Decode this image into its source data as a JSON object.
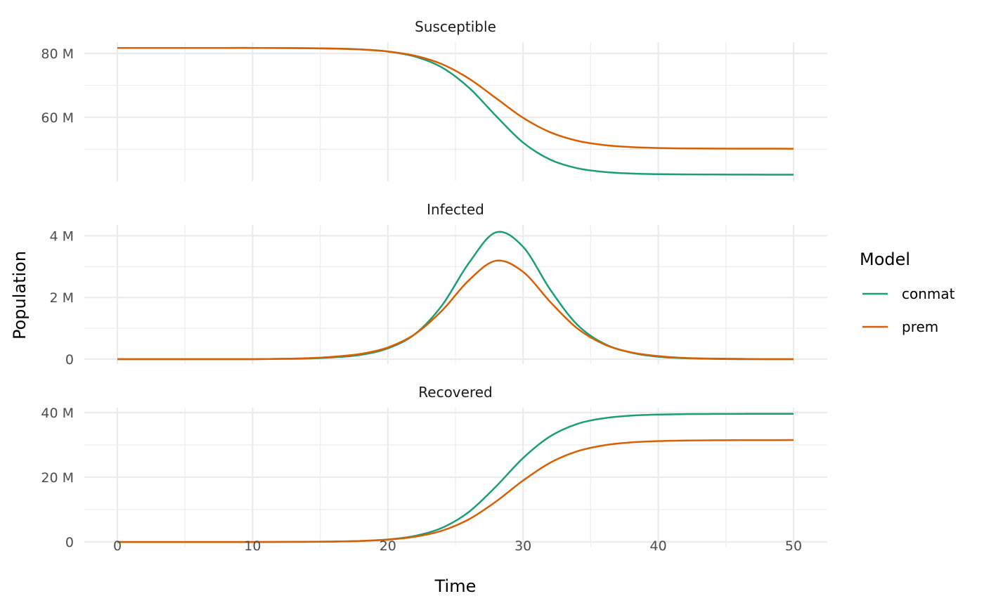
{
  "chart_data": {
    "type": "line",
    "xlabel": "Time",
    "ylabel": "Population",
    "x_ticks": [
      "0",
      "10",
      "20",
      "30",
      "40",
      "50"
    ],
    "xlim": [
      0,
      50
    ],
    "grid": true,
    "legend": {
      "title": "Model",
      "placement": "right",
      "entries": [
        "conmat",
        "prem"
      ]
    },
    "colors": {
      "conmat": "#1B9E77",
      "prem": "#D95F02"
    },
    "x": [
      0,
      2,
      4,
      6,
      8,
      10,
      12,
      14,
      16,
      18,
      20,
      22,
      24,
      26,
      28,
      30,
      32,
      34,
      36,
      38,
      40,
      42,
      44,
      46,
      48,
      50
    ],
    "panels": [
      {
        "title": "Susceptible",
        "unit": "M",
        "y_ticks": [
          {
            "value": 60,
            "label": "60 M"
          },
          {
            "value": 80,
            "label": "80 M"
          }
        ],
        "ylim": [
          40,
          83.5
        ],
        "series": [
          {
            "name": "conmat",
            "values": [
              81.7,
              81.7,
              81.7,
              81.7,
              81.7,
              81.7,
              81.67,
              81.63,
              81.51,
              81.24,
              80.57,
              79.01,
              75.6,
              69.27,
              60.44,
              52.12,
              46.81,
              44.11,
              42.95,
              42.44,
              42.24,
              42.16,
              42.13,
              42.12,
              42.1,
              42.1
            ]
          },
          {
            "name": "prem",
            "values": [
              81.7,
              81.7,
              81.7,
              81.7,
              81.7,
              81.7,
              81.66,
              81.61,
              81.48,
              81.21,
              80.6,
              79.27,
              76.64,
              72.12,
              66.0,
              59.88,
              55.36,
              52.69,
              51.34,
              50.7,
              50.42,
              50.3,
              50.24,
              50.22,
              50.21,
              50.2
            ]
          }
        ]
      },
      {
        "title": "Infected",
        "unit": "M",
        "y_ticks": [
          {
            "value": 0,
            "label": "0"
          },
          {
            "value": 2,
            "label": "2 M"
          },
          {
            "value": 4,
            "label": "4 M"
          }
        ],
        "ylim": [
          -0.16,
          4.35
        ],
        "series": [
          {
            "name": "conmat",
            "values": [
              0,
              0,
              0,
              0,
              0,
              0,
              0.01,
              0.02,
              0.06,
              0.14,
              0.35,
              0.81,
              1.74,
              3.12,
              4.11,
              3.64,
              2.26,
              1.12,
              0.5,
              0.21,
              0.08,
              0.03,
              0.01,
              0,
              0,
              0
            ]
          },
          {
            "name": "prem",
            "values": [
              0,
              0,
              0,
              0,
              0,
              0,
              0.01,
              0.03,
              0.08,
              0.17,
              0.38,
              0.81,
              1.57,
              2.56,
              3.19,
              2.83,
              1.86,
              1.0,
              0.48,
              0.22,
              0.1,
              0.04,
              0.02,
              0.01,
              0,
              0
            ]
          }
        ]
      },
      {
        "title": "Recovered",
        "unit": "M",
        "y_ticks": [
          {
            "value": 0,
            "label": "0"
          },
          {
            "value": 20,
            "label": "20 M"
          },
          {
            "value": 40,
            "label": "40 M"
          }
        ],
        "ylim": [
          -1.5,
          41.5
        ],
        "series": [
          {
            "name": "conmat",
            "values": [
              0,
              0,
              0,
              0,
              0,
              0,
              0.01,
              0.05,
              0.13,
              0.32,
              0.78,
              1.88,
              4.36,
              9.31,
              17.15,
              25.94,
              32.63,
              36.47,
              38.25,
              39.05,
              39.38,
              39.51,
              39.56,
              39.58,
              39.6,
              39.6
            ]
          },
          {
            "name": "prem",
            "values": [
              0,
              0,
              0,
              0,
              0,
              0,
              0.03,
              0.06,
              0.14,
              0.32,
              0.72,
              1.62,
              3.49,
              7.02,
              12.51,
              18.99,
              24.48,
              28.01,
              29.88,
              30.78,
              31.18,
              31.36,
              31.44,
              31.47,
              31.49,
              31.5
            ]
          }
        ]
      }
    ]
  }
}
